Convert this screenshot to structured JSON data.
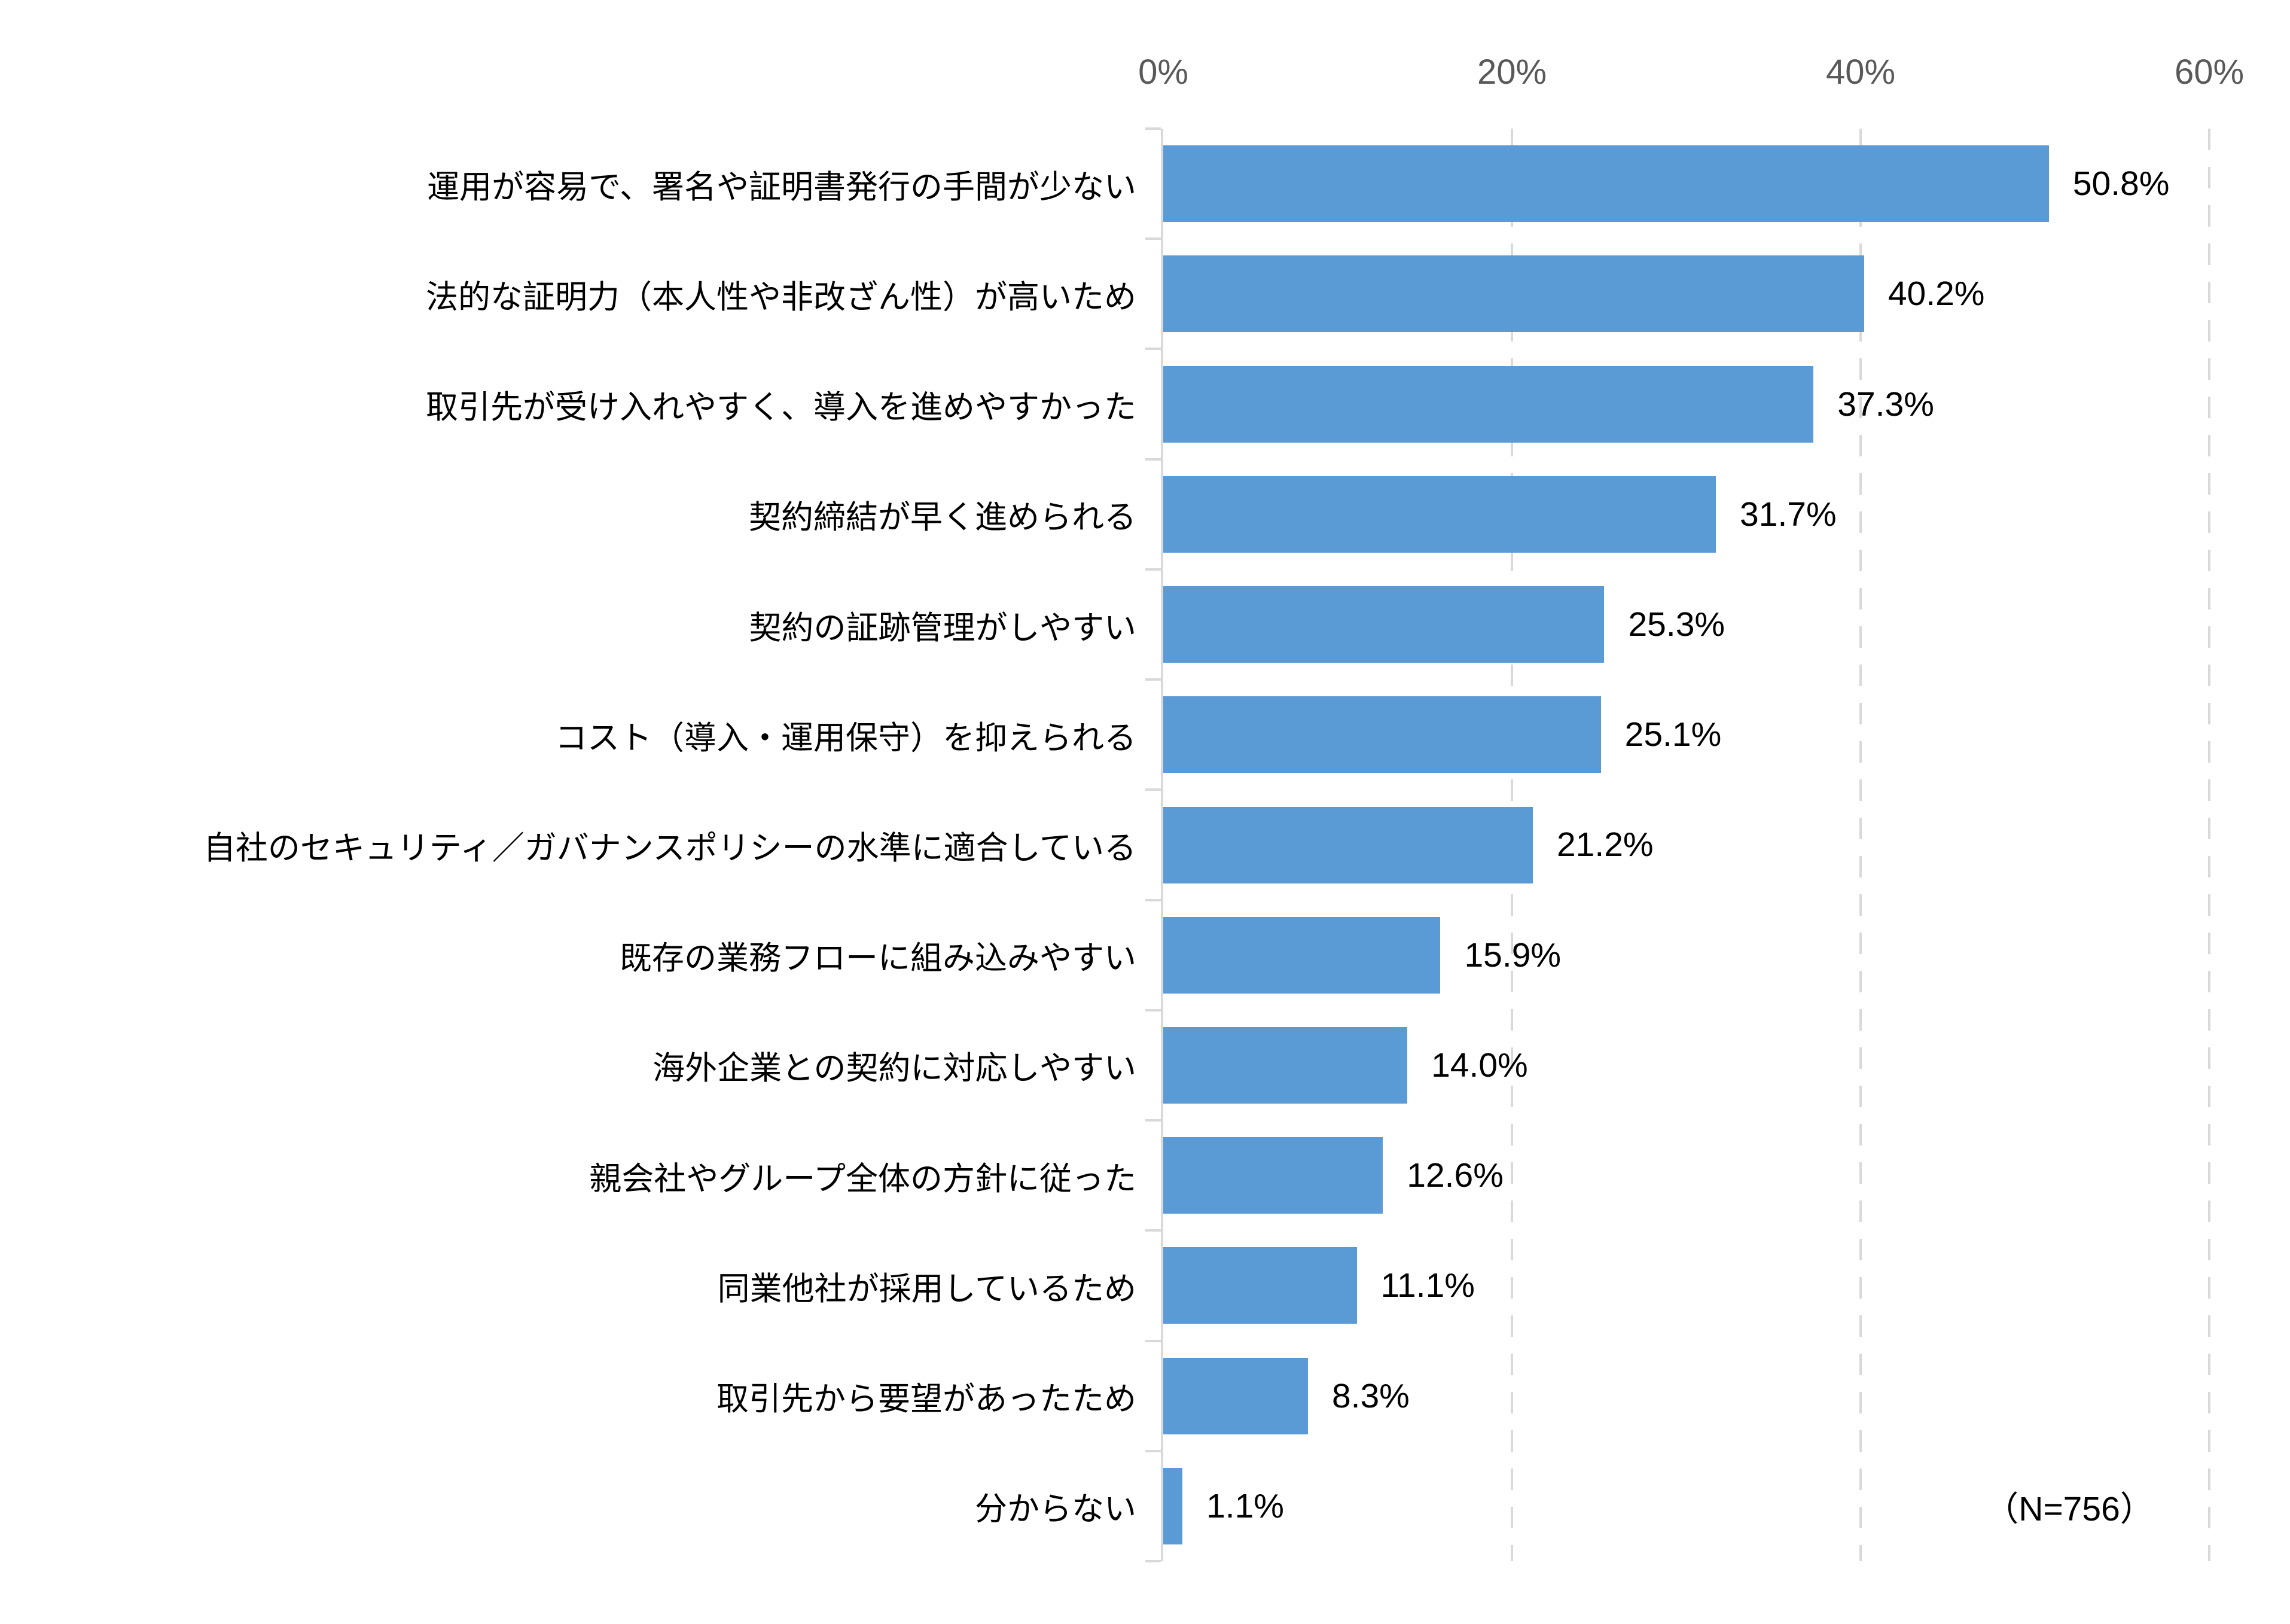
{
  "chart_data": {
    "type": "bar",
    "orientation": "horizontal",
    "title": "",
    "xlabel": "",
    "ylabel": "",
    "categories": [
      "運用が容易で、署名や証明書発行の手間が少ない",
      "法的な証明力（本人性や非改ざん性）が高いため",
      "取引先が受け入れやすく、導入を進めやすかった",
      "契約締結が早く進められる",
      "契約の証跡管理がしやすい",
      "コスト（導入・運用保守）を抑えられる",
      "自社のセキュリティ／ガバナンスポリシーの水準に適合している",
      "既存の業務フローに組み込みやすい",
      "海外企業との契約に対応しやすい",
      "親会社やグループ全体の方針に従った",
      "同業他社が採用しているため",
      "取引先から要望があったため",
      "分からない"
    ],
    "values": [
      50.8,
      40.2,
      37.3,
      31.7,
      25.3,
      25.1,
      21.2,
      15.9,
      14.0,
      12.6,
      11.1,
      8.3,
      1.1
    ],
    "value_labels": [
      "50.8%",
      "40.2%",
      "37.3%",
      "31.7%",
      "25.3%",
      "25.1%",
      "21.2%",
      "15.9%",
      "14.0%",
      "12.6%",
      "11.1%",
      "8.3%",
      "1.1%"
    ],
    "x_axis": {
      "position": "top",
      "min": 0,
      "max": 60,
      "tick_values": [
        0,
        20,
        40,
        60
      ],
      "tick_labels": [
        "0%",
        "20%",
        "40%",
        "60%"
      ]
    },
    "grid": {
      "vertical_dashed_at": [
        20,
        40,
        60
      ],
      "horizontal": false
    },
    "annotation": "（N=756）",
    "legend": "none",
    "colors": {
      "bar": "#5B9BD5",
      "gridline": "#D9D9D9",
      "axis_tick_label": "#595959",
      "text": "#000000"
    }
  }
}
